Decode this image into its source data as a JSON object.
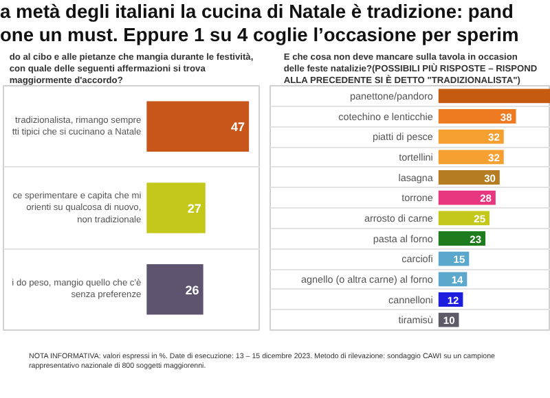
{
  "chart_data": [
    {
      "type": "bar",
      "orientation": "horizontal",
      "title": "a metà degli italiani la cucina di Natale è tradizione: pand\none un must. Eppure 1 su 4 coglie l’occasione per sperim",
      "subtitle": "do al cibo e alle pietanze che mangia durante le festività,\ncon quale delle seguenti affermazioni si trova\nmaggiormente d'accordo?",
      "categories": [
        "tradizionalista, rimango sempre\ntti tipici che si cucinano a Natale",
        "ce sperimentare e capita che mi\norienti su qualcosa di nuovo,\nnon tradizionale",
        "i do peso, mangio quello che c'è\nsenza preferenze"
      ],
      "values": [
        47,
        27,
        26
      ],
      "colors": [
        "#c8561b",
        "#c3c81a",
        "#5e5470"
      ],
      "data_labels": true,
      "grid": "y",
      "annotations": [
        "NOTA INFORMATIVA: valori espressi in %. Date di esecuzione: 13 – 15 dicembre 2023. Metodo di rilevazione: sondaggio CAWI su un campione\nrappresentativo nazionale di 800 soggetti maggiorenni."
      ]
    },
    {
      "type": "bar",
      "orientation": "horizontal",
      "title": "E che cosa non deve mancare sulla tavola in occasion\ndelle feste natalizie?(POSSIBILI PIÙ RISPOSTE – RISPOND\nALLA PRECEDENTE SI È DETTO \"TRADIZIONALISTA\")",
      "categories": [
        "panettone/pandoro",
        "cotechino e lenticchie",
        "piatti di pesce",
        "tortellini",
        "lasagna",
        "torrone",
        "arrosto di carne",
        "pasta al forno",
        "carciofi",
        "agnello (o altra carne) al forno",
        "cannelloni",
        "tiramisù"
      ],
      "values": [
        55,
        38,
        32,
        32,
        30,
        28,
        25,
        23,
        15,
        14,
        12,
        10
      ],
      "value_labels": [
        null,
        "38",
        "32",
        "32",
        "30",
        "28",
        "25",
        "23",
        "15",
        "14",
        "12",
        "10"
      ],
      "colors": [
        "#c55a11",
        "#ee7b22",
        "#f5a031",
        "#f5a031",
        "#b57c22",
        "#e8377e",
        "#c3c81a",
        "#1e7b1e",
        "#5ba8cc",
        "#5ba8cc",
        "#1d1de0",
        "#5e5a68"
      ],
      "grid": "y"
    }
  ]
}
